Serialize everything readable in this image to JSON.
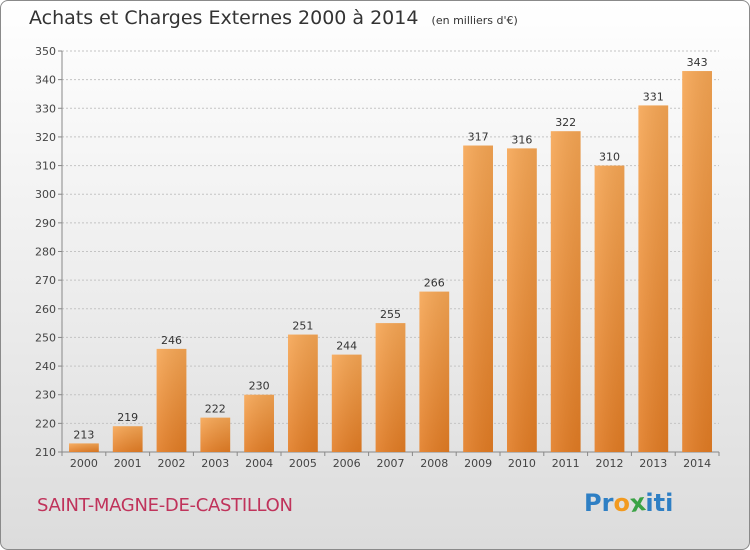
{
  "title": "Achats et Charges Externes 2000 à 2014",
  "unit": "(en milliers d'€)",
  "place": "SAINT-MAGNE-DE-CASTILLON",
  "logo": {
    "letters": [
      "P",
      "r",
      "o",
      "x",
      "i",
      "t",
      "i"
    ],
    "colors": [
      "#2e7fc4",
      "#2e7fc4",
      "#f29a1f",
      "#3aa245",
      "#2e7fc4",
      "#2e7fc4",
      "#2e7fc4"
    ]
  },
  "colors": {
    "bar": "#f0963e",
    "bar_dark": "#e07820",
    "title": "#333333",
    "place": "#c0335b"
  },
  "chart_data": {
    "type": "bar",
    "title": "Achats et Charges Externes 2000 à 2014",
    "subtitle": "(en milliers d'€)",
    "categories": [
      "2000",
      "2001",
      "2002",
      "2003",
      "2004",
      "2005",
      "2006",
      "2007",
      "2008",
      "2009",
      "2010",
      "2011",
      "2012",
      "2013",
      "2014"
    ],
    "values": [
      213,
      219,
      246,
      222,
      230,
      251,
      244,
      255,
      266,
      317,
      316,
      322,
      310,
      331,
      343
    ],
    "ylim": [
      210,
      350
    ],
    "yticks": [
      210,
      220,
      230,
      240,
      250,
      260,
      270,
      280,
      290,
      300,
      310,
      320,
      330,
      340,
      350
    ],
    "grid": true,
    "xlabel": "",
    "ylabel": ""
  }
}
